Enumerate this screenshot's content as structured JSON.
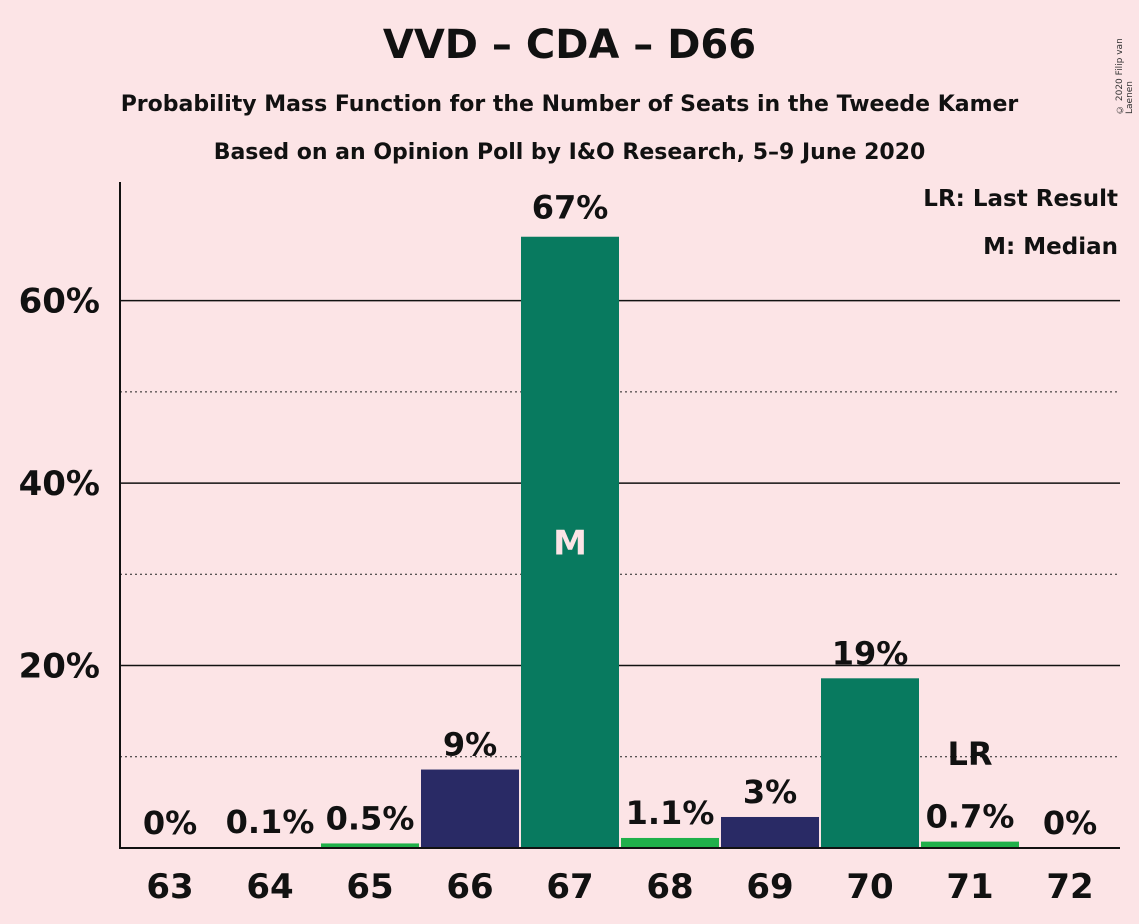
{
  "chart_data": {
    "type": "bar",
    "title": "VVD – CDA – D66",
    "subtitle_1": "Probability Mass Function for the Number of Seats in the Tweede Kamer",
    "subtitle_2": "Based on an Opinion Poll by I&O Research, 5–9 June 2020",
    "copyright": "© 2020 Filip van Laenen",
    "legend": [
      "LR: Last Result",
      "M: Median"
    ],
    "categories": [
      "63",
      "64",
      "65",
      "66",
      "67",
      "68",
      "69",
      "70",
      "71",
      "72"
    ],
    "values": [
      0,
      0.1,
      0.5,
      8.6,
      67,
      1.1,
      3.4,
      18.6,
      0.7,
      0
    ],
    "value_labels": [
      "0%",
      "0.1%",
      "0.5%",
      "9%",
      "67%",
      "1.1%",
      "3%",
      "19%",
      "0.7%",
      "0%"
    ],
    "bar_colors": [
      "#087a5f",
      "#087a5f",
      "#1fb04a",
      "#292a65",
      "#087a5f",
      "#1fb04a",
      "#292a65",
      "#087a5f",
      "#1fb04a",
      "#087a5f"
    ],
    "median_index": 4,
    "median_label": "M",
    "last_result_index": 8,
    "last_result_label": "LR",
    "yticks": [
      20,
      40,
      60
    ],
    "ytick_labels": [
      "20%",
      "40%",
      "60%"
    ],
    "minor_gridlines": [
      10,
      30,
      50
    ],
    "ylim": [
      0,
      73
    ],
    "grid": true
  }
}
